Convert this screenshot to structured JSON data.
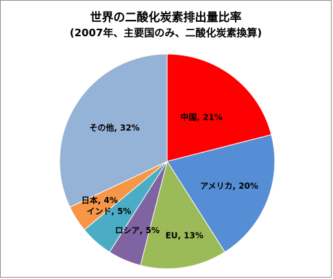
{
  "chart_data": {
    "type": "pie",
    "title": "世界の二酸化炭素排出量比率",
    "subtitle": "(2007年、主要国のみ、二酸化炭素換算)",
    "slices": [
      {
        "name": "中国",
        "value": 21,
        "label": "中国, 21%",
        "color": "#ff0000"
      },
      {
        "name": "アメリカ",
        "value": 20,
        "label": "アメリカ, 20%",
        "color": "#558ed5"
      },
      {
        "name": "EU",
        "value": 13,
        "label": "EU, 13%",
        "color": "#9bbb59"
      },
      {
        "name": "ロシア",
        "value": 5,
        "label": "ロシア, 5%",
        "color": "#8064a2"
      },
      {
        "name": "インド",
        "value": 5,
        "label": "インド, 5%",
        "color": "#4bacc6"
      },
      {
        "name": "日本",
        "value": 4,
        "label": "日本, 4%",
        "color": "#f79646"
      },
      {
        "name": "その他",
        "value": 32,
        "label": "その他, 32%",
        "color": "#95b3d7"
      }
    ],
    "start_angle_deg": 0,
    "direction": "clockwise"
  }
}
